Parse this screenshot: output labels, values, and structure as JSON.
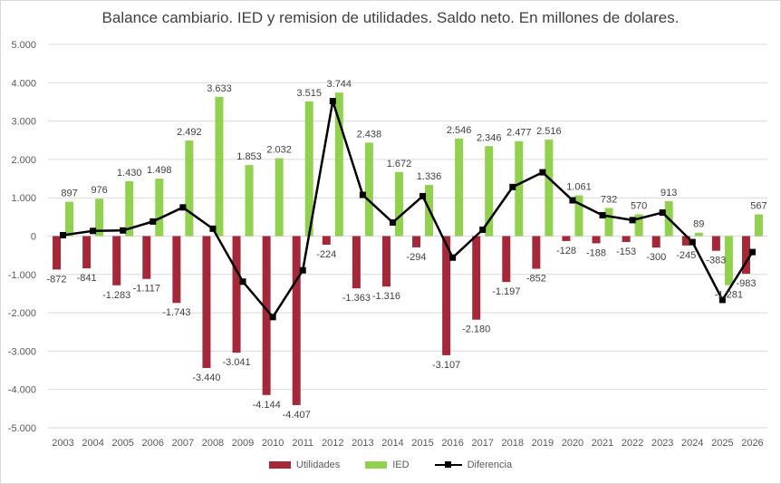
{
  "chart_data": {
    "type": "bar",
    "title": "Balance cambiario. IED y remision de utilidades. Saldo neto. En millones de dolares.",
    "categories": [
      "2003",
      "2004",
      "2005",
      "2006",
      "2007",
      "2008",
      "2009",
      "2010",
      "2011",
      "2012",
      "2013",
      "2014",
      "2015",
      "2016",
      "2017",
      "2018",
      "2019",
      "2020",
      "2021",
      "2022",
      "2023",
      "2024",
      "2025",
      "2026"
    ],
    "ylim": [
      -5000,
      5000
    ],
    "y_ticks": [
      5000,
      4000,
      3000,
      2000,
      1000,
      0,
      -1000,
      -2000,
      -3000,
      -4000,
      -5000
    ],
    "y_tick_labels": [
      "5.000",
      "4.000",
      "3.000",
      "2.000",
      "1.000",
      "0",
      "-1.000",
      "-2.000",
      "-3.000",
      "-4.000",
      "-5.000"
    ],
    "grid": true,
    "legend_position": "bottom",
    "series": [
      {
        "name": "Utilidades",
        "type": "bar",
        "color": "#a5283a",
        "values": [
          -872,
          -841,
          -1283,
          -1117,
          -1743,
          -3440,
          -3041,
          -4144,
          -4407,
          -224,
          -1363,
          -1316,
          -294,
          -3107,
          -2180,
          -1197,
          -852,
          -128,
          -188,
          -153,
          -300,
          -245,
          -383,
          -983
        ],
        "labels": [
          "-872",
          "-841",
          "-1.283",
          "-1.117",
          "-1.743",
          "-3.440",
          "-3.041",
          "-4.144",
          "-4.407",
          "-224",
          "-1.363",
          "-1.316",
          "-294",
          "-3.107",
          "-2.180",
          "-1.197",
          "-852",
          "-128",
          "-188",
          "-153",
          "-300",
          "-245",
          "-383",
          "-983"
        ]
      },
      {
        "name": "IED",
        "type": "bar",
        "color": "#92d050",
        "values": [
          897,
          976,
          1430,
          1498,
          2492,
          3633,
          1853,
          2032,
          3515,
          3744,
          2438,
          1672,
          1336,
          2546,
          2346,
          2477,
          2516,
          1061,
          732,
          570,
          913,
          89,
          -1281,
          567
        ],
        "labels": [
          "897",
          "976",
          "1.430",
          "1.498",
          "2.492",
          "3.633",
          "1.853",
          "2.032",
          "3.515",
          "3.744",
          "2.438",
          "1.672",
          "1.336",
          "2.546",
          "2.346",
          "2.477",
          "2.516",
          "1.061",
          "732",
          "570",
          "913",
          "89",
          "-1.281",
          "567"
        ]
      },
      {
        "name": "Diferencia",
        "type": "line",
        "color": "#000000",
        "values": [
          25,
          135,
          147,
          381,
          749,
          193,
          -1188,
          -2112,
          -892,
          3520,
          1075,
          356,
          1042,
          -561,
          166,
          1280,
          1664,
          933,
          544,
          417,
          613,
          -156,
          -1664,
          -416
        ]
      }
    ]
  }
}
